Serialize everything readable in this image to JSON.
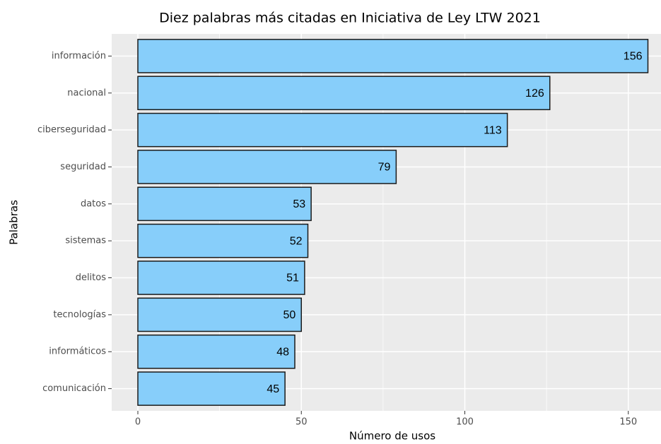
{
  "chart_data": {
    "type": "bar",
    "orientation": "horizontal",
    "title": "Diez palabras más citadas en Iniciativa de Ley LTW 2021",
    "x_label": "Número de usos",
    "y_label": "Palabras",
    "categories": [
      "información",
      "nacional",
      "ciberseguridad",
      "seguridad",
      "datos",
      "sistemas",
      "delitos",
      "tecnologías",
      "informáticos",
      "comunicación"
    ],
    "values": [
      156,
      126,
      113,
      79,
      53,
      52,
      51,
      50,
      48,
      45
    ],
    "color": "#87cefa",
    "edge_color": "#1a1a1a",
    "xlim": [
      -8,
      160
    ],
    "xticks": [
      0,
      50,
      100,
      150
    ],
    "x_minor_grid": [
      25,
      75,
      125
    ],
    "grid": true
  }
}
